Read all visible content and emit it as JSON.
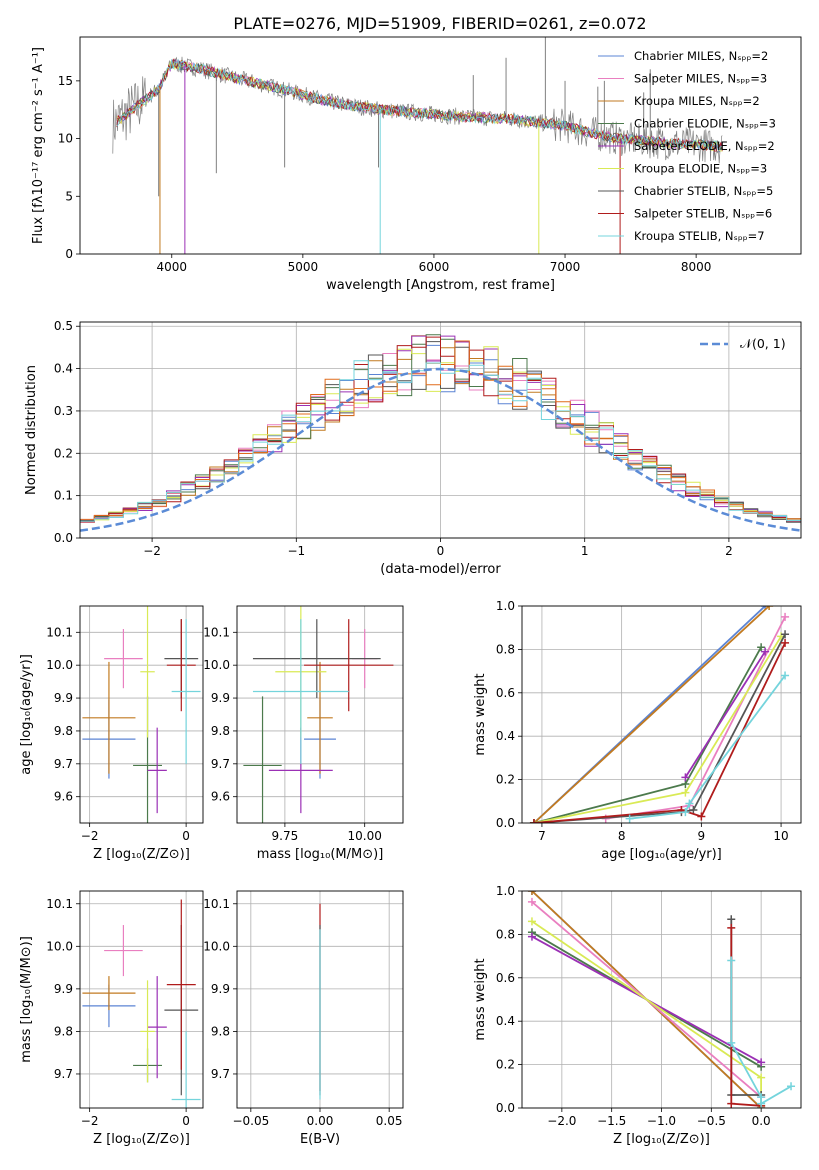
{
  "figure": {
    "title": "PLATE=0276, MJD=51909, FIBERID=0261, z=0.072"
  },
  "colors": {
    "chabrier_miles": "#5b84d4",
    "salpeter_miles": "#e97fc0",
    "kroupa_miles": "#c27a20",
    "chabrier_elodie": "#4c7a4c",
    "salpeter_elodie": "#9b30b5",
    "kroupa_elodie": "#d9ea55",
    "chabrier_stelib": "#555555",
    "salpeter_stelib": "#b01c1c",
    "kroupa_stelib": "#74d4dc",
    "data_gray": "#808080",
    "orange": "#e06b1c",
    "normal_curve": "#5b8bd6"
  },
  "chart_data": [
    {
      "id": "spectrum",
      "type": "line",
      "xlabel": "wavelength [Angstrom, rest frame]",
      "ylabel": "Flux [fλ10⁻¹⁷ erg cm⁻² s⁻¹ A⁻¹]",
      "xlim": [
        3300,
        8800
      ],
      "ylim": [
        0,
        18.8
      ],
      "xticks": [
        4000,
        5000,
        6000,
        7000,
        8000
      ],
      "yticks": [
        0,
        5,
        10,
        15
      ],
      "legend_position": "top-right",
      "legend": [
        "Chabrier MILES, Nₛₚₚ=2",
        "Salpeter MILES, Nₛₚₚ=3",
        "Kroupa MILES, Nₛₚₚ=2",
        "Chabrier ELODIE, Nₛₚₚ=3",
        "Salpeter ELODIE, Nₛₚₚ=2",
        "Kroupa ELODIE, Nₛₚₚ=3",
        "Chabrier STELIB, Nₛₚₚ=5",
        "Salpeter STELIB, Nₛₚₚ=6",
        "Kroupa STELIB, Nₛₚₚ=7"
      ],
      "continuum": {
        "x": [
          3550,
          3700,
          3900,
          4000,
          4200,
          4500,
          4800,
          5000,
          5200,
          5400,
          5600,
          5800,
          6000,
          6200,
          6400,
          6600,
          6800,
          7000,
          7200,
          7400,
          7600,
          7800,
          8000,
          8200
        ],
        "y": [
          11.2,
          12.5,
          14.3,
          16.5,
          16.1,
          15.2,
          14.4,
          13.8,
          13.2,
          12.8,
          12.5,
          12.3,
          12.1,
          11.9,
          11.8,
          11.7,
          11.4,
          11.1,
          10.5,
          10.0,
          9.8,
          9.6,
          9.5,
          9.3
        ]
      },
      "data_spikes": [
        [
          3900,
          5.0
        ],
        [
          4340,
          7.0
        ],
        [
          4861,
          7.5
        ],
        [
          5577,
          7.5
        ],
        [
          6300,
          15.5
        ],
        [
          6550,
          17.0
        ],
        [
          6850,
          19.0
        ],
        [
          7000,
          15.0
        ],
        [
          7250,
          14.5
        ],
        [
          7300,
          15.0
        ],
        [
          7600,
          14.0
        ],
        [
          7650,
          16.0
        ]
      ]
    },
    {
      "id": "residuals",
      "type": "histogram",
      "xlabel": "(data-model)/error",
      "ylabel": "Normed distribution",
      "xlim": [
        -2.5,
        2.5
      ],
      "ylim": [
        0,
        0.51
      ],
      "xticks": [
        -2,
        -1,
        0,
        1,
        2
      ],
      "yticks": [
        0.0,
        0.1,
        0.2,
        0.3,
        0.4,
        0.5
      ],
      "legend_position": "top-right",
      "legend": [
        "𝒩(0, 1)"
      ],
      "bin_width": 0.1
    },
    {
      "id": "age_vs_Z",
      "type": "scatter",
      "xlabel": "Z [log₁₀(Z/Z⊙)]",
      "ylabel": "age  [log₁₀(age/yr)]",
      "xlim": [
        -2.2,
        0.35
      ],
      "ylim": [
        9.52,
        10.18
      ],
      "xticks": [
        -2,
        0
      ],
      "yticks": [
        9.6,
        9.7,
        9.8,
        9.9,
        10.0,
        10.1
      ],
      "points": [
        {
          "model": "chabrier_miles",
          "x": -1.6,
          "xerr": 0.55,
          "y": 9.775,
          "yerr": 0.12
        },
        {
          "model": "salpeter_miles",
          "x": -1.3,
          "xerr": 0.4,
          "y": 10.02,
          "yerr": 0.09
        },
        {
          "model": "kroupa_miles",
          "x": -1.6,
          "xerr": 0.55,
          "y": 9.84,
          "yerr": 0.17
        },
        {
          "model": "chabrier_elodie",
          "x": -0.8,
          "xerr": 0.3,
          "y": 9.695,
          "yerr": 0.21
        },
        {
          "model": "salpeter_elodie",
          "x": -0.6,
          "xerr": 0.2,
          "y": 9.68,
          "yerr": 0.13
        },
        {
          "model": "kroupa_elodie",
          "x": -0.8,
          "xerr": 0.15,
          "y": 9.98,
          "yerr": 0.2
        },
        {
          "model": "chabrier_stelib",
          "x": -0.1,
          "xerr": 0.35,
          "y": 10.02,
          "yerr": 0.12
        },
        {
          "model": "salpeter_stelib",
          "x": -0.1,
          "xerr": 0.3,
          "y": 10.0,
          "yerr": 0.14
        },
        {
          "model": "kroupa_stelib",
          "x": 0.0,
          "xerr": 0.3,
          "y": 9.92,
          "yerr": 0.22
        }
      ]
    },
    {
      "id": "age_vs_mass",
      "type": "scatter",
      "xlabel": "mass [log₁₀(M/M⊙)]",
      "ylabel": "",
      "xlim": [
        9.6,
        10.12
      ],
      "ylim": [
        9.52,
        10.18
      ],
      "xticks": [
        9.75,
        10.0
      ],
      "yticks": [
        9.6,
        9.7,
        9.8,
        9.9,
        10.0,
        10.1
      ],
      "points": [
        {
          "model": "chabrier_miles",
          "x": 9.86,
          "xerr": 0.05,
          "y": 9.775,
          "yerr": 0.12
        },
        {
          "model": "salpeter_miles",
          "x": 10.0,
          "xerr": 0.04,
          "y": 10.02,
          "yerr": 0.09
        },
        {
          "model": "kroupa_miles",
          "x": 9.86,
          "xerr": 0.04,
          "y": 9.84,
          "yerr": 0.17
        },
        {
          "model": "chabrier_elodie",
          "x": 9.68,
          "xerr": 0.06,
          "y": 9.695,
          "yerr": 0.21
        },
        {
          "model": "salpeter_elodie",
          "x": 9.8,
          "xerr": 0.1,
          "y": 9.68,
          "yerr": 0.13
        },
        {
          "model": "kroupa_elodie",
          "x": 9.8,
          "xerr": 0.08,
          "y": 9.98,
          "yerr": 0.2
        },
        {
          "model": "chabrier_stelib",
          "x": 9.85,
          "xerr": 0.2,
          "y": 10.02,
          "yerr": 0.12
        },
        {
          "model": "salpeter_stelib",
          "x": 9.95,
          "xerr": 0.14,
          "y": 10.0,
          "yerr": 0.14
        },
        {
          "model": "kroupa_stelib",
          "x": 9.8,
          "xerr": 0.15,
          "y": 9.92,
          "yerr": 0.22
        }
      ]
    },
    {
      "id": "weight_vs_age",
      "type": "line",
      "xlabel": "age  [log₁₀(age/yr)]",
      "ylabel": "mass weight",
      "xlim": [
        6.75,
        10.25
      ],
      "ylim": [
        0.0,
        1.0
      ],
      "xticks": [
        7,
        8,
        9,
        10
      ],
      "yticks": [
        0.0,
        0.2,
        0.4,
        0.6,
        0.8,
        1.0
      ],
      "series": [
        {
          "model": "chabrier_miles",
          "x": [
            6.9,
            9.8
          ],
          "y": [
            0.0,
            1.0
          ]
        },
        {
          "model": "kroupa_miles",
          "x": [
            6.9,
            9.85
          ],
          "y": [
            0.0,
            1.0
          ]
        },
        {
          "model": "salpeter_miles",
          "x": [
            7.8,
            8.85,
            10.05
          ],
          "y": [
            0.02,
            0.08,
            0.95
          ]
        },
        {
          "model": "chabrier_elodie",
          "x": [
            6.9,
            8.8,
            9.75
          ],
          "y": [
            0.0,
            0.18,
            0.81
          ]
        },
        {
          "model": "salpeter_elodie",
          "x": [
            8.8,
            9.8
          ],
          "y": [
            0.21,
            0.79
          ]
        },
        {
          "model": "kroupa_elodie",
          "x": [
            6.9,
            8.8,
            10.0
          ],
          "y": [
            0.0,
            0.14,
            0.86
          ]
        },
        {
          "model": "chabrier_stelib",
          "x": [
            6.9,
            8.75,
            8.9,
            10.05
          ],
          "y": [
            0.0,
            0.05,
            0.06,
            0.87
          ]
        },
        {
          "model": "salpeter_stelib",
          "x": [
            6.9,
            8.75,
            9.0,
            10.05
          ],
          "y": [
            0.0,
            0.06,
            0.03,
            0.83
          ]
        },
        {
          "model": "kroupa_stelib",
          "x": [
            8.1,
            8.8,
            8.85,
            10.05
          ],
          "y": [
            0.02,
            0.05,
            0.09,
            0.68
          ]
        }
      ]
    },
    {
      "id": "mass_vs_Z",
      "type": "scatter",
      "xlabel": "Z [log₁₀(Z/Z⊙)]",
      "ylabel": "mass [log₁₀(M/M⊙)]",
      "xlim": [
        -2.2,
        0.35
      ],
      "ylim": [
        9.62,
        10.13
      ],
      "xticks": [
        -2,
        0
      ],
      "yticks": [
        9.7,
        9.8,
        9.9,
        10.0,
        10.1
      ],
      "points": [
        {
          "model": "chabrier_miles",
          "x": -1.6,
          "xerr": 0.55,
          "y": 9.86,
          "yerr": 0.05
        },
        {
          "model": "salpeter_miles",
          "x": -1.3,
          "xerr": 0.4,
          "y": 9.99,
          "yerr": 0.06
        },
        {
          "model": "kroupa_miles",
          "x": -1.6,
          "xerr": 0.55,
          "y": 9.89,
          "yerr": 0.04
        },
        {
          "model": "chabrier_elodie",
          "x": -0.8,
          "xerr": 0.3,
          "y": 9.72,
          "yerr": 0.04
        },
        {
          "model": "salpeter_elodie",
          "x": -0.6,
          "xerr": 0.2,
          "y": 9.81,
          "yerr": 0.12
        },
        {
          "model": "kroupa_elodie",
          "x": -0.8,
          "xerr": 0.15,
          "y": 9.8,
          "yerr": 0.12
        },
        {
          "model": "chabrier_stelib",
          "x": -0.1,
          "xerr": 0.35,
          "y": 9.85,
          "yerr": 0.2
        },
        {
          "model": "salpeter_stelib",
          "x": -0.1,
          "xerr": 0.3,
          "y": 9.91,
          "yerr": 0.2
        },
        {
          "model": "kroupa_stelib",
          "x": 0.0,
          "xerr": 0.3,
          "y": 9.64,
          "yerr": 0.16
        }
      ]
    },
    {
      "id": "mass_vs_ebv",
      "type": "scatter",
      "xlabel": "E(B-V)",
      "ylabel": "",
      "xlim": [
        -0.06,
        0.06
      ],
      "ylim": [
        9.62,
        10.13
      ],
      "xticks": [
        -0.05,
        0.0,
        0.05
      ],
      "xticklabels": [
        "−0.05",
        "0.00",
        "0.05"
      ],
      "yticks": [
        9.7,
        9.8,
        9.9,
        10.0,
        10.1
      ],
      "points": [
        {
          "model": "salpeter_stelib",
          "x": 0.0,
          "xerr": 0,
          "y": 9.88,
          "yerr": 0.22
        },
        {
          "model": "chabrier_stelib",
          "x": 0.0,
          "xerr": 0,
          "y": 9.85,
          "yerr": 0.2
        },
        {
          "model": "kroupa_stelib",
          "x": 0.0,
          "xerr": 0,
          "y": 9.84,
          "yerr": 0.2
        }
      ]
    },
    {
      "id": "weight_vs_Z",
      "type": "line",
      "xlabel": "Z [log₁₀(Z/Z⊙)]",
      "ylabel": "mass weight",
      "xlim": [
        -2.4,
        0.4
      ],
      "ylim": [
        0.0,
        1.0
      ],
      "xticks": [
        -2.0,
        -1.5,
        -1.0,
        -0.5,
        0.0
      ],
      "xticklabels": [
        "−2.0",
        "−1.5",
        "−1.0",
        "−0.5",
        "0.0"
      ],
      "yticks": [
        0.0,
        0.2,
        0.4,
        0.6,
        0.8,
        1.0
      ],
      "series": [
        {
          "model": "chabrier_miles",
          "x": [
            -2.3,
            0.0
          ],
          "y": [
            1.0,
            0.0
          ]
        },
        {
          "model": "kroupa_miles",
          "x": [
            -2.3,
            0.0
          ],
          "y": [
            1.0,
            0.0
          ]
        },
        {
          "model": "salpeter_miles",
          "x": [
            -2.3,
            0.0
          ],
          "y": [
            0.95,
            0.05
          ]
        },
        {
          "model": "chabrier_elodie",
          "x": [
            -2.3,
            0.0
          ],
          "y": [
            0.81,
            0.19
          ]
        },
        {
          "model": "salpeter_elodie",
          "x": [
            -2.3,
            0.0
          ],
          "y": [
            0.79,
            0.21
          ]
        },
        {
          "model": "kroupa_elodie",
          "x": [
            -2.3,
            0.0,
            0.0
          ],
          "y": [
            0.86,
            0.14,
            0.01
          ]
        },
        {
          "model": "chabrier_stelib",
          "x": [
            -0.3,
            -0.3,
            0.0
          ],
          "y": [
            0.87,
            0.06,
            0.06
          ]
        },
        {
          "model": "salpeter_stelib",
          "x": [
            -0.3,
            -0.3,
            0.0
          ],
          "y": [
            0.83,
            0.02,
            0.01
          ]
        },
        {
          "model": "kroupa_stelib",
          "x": [
            -0.3,
            -0.3,
            0.0,
            0.0,
            0.3
          ],
          "y": [
            0.68,
            0.3,
            0.05,
            0.02,
            0.1
          ]
        }
      ]
    }
  ]
}
